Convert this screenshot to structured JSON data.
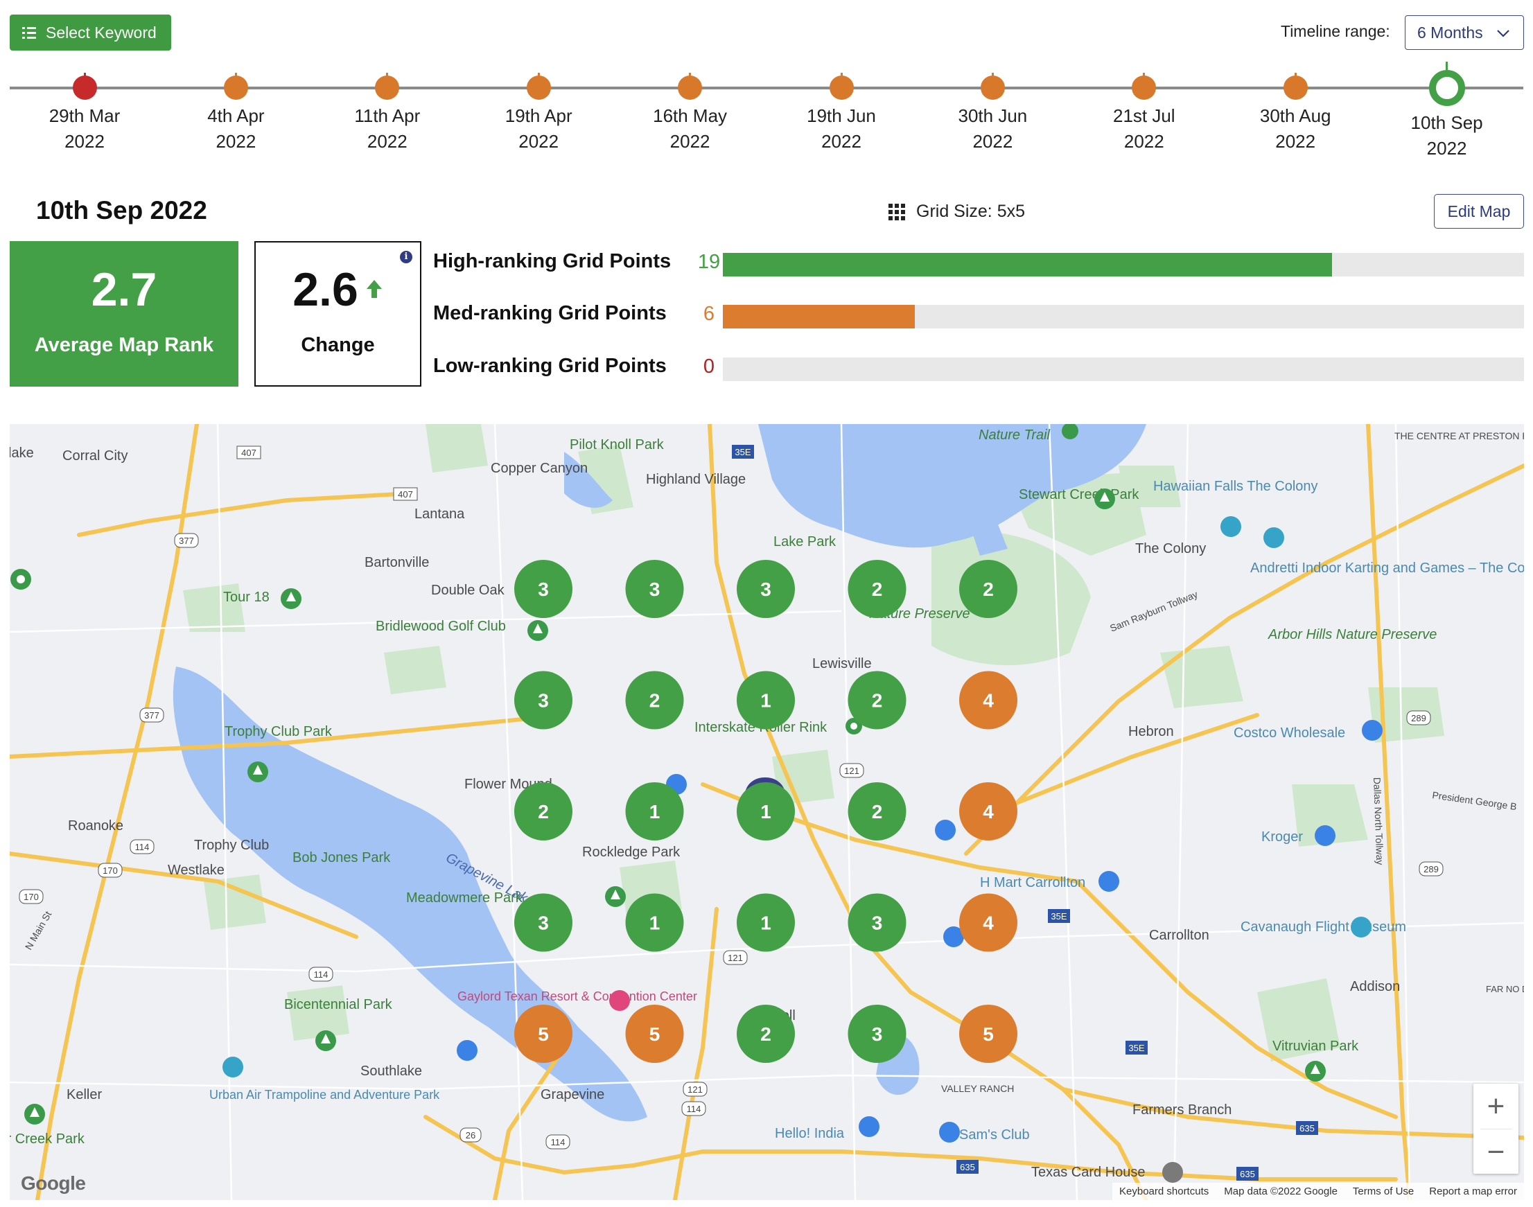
{
  "toolbar": {
    "select_keyword_label": "Select Keyword",
    "timeline_range_label": "Timeline range:",
    "timeline_range_value": "6 Months"
  },
  "timeline": [
    {
      "day": "29th Mar",
      "year": "2022",
      "status": "red"
    },
    {
      "day": "4th Apr",
      "year": "2022",
      "status": "orange"
    },
    {
      "day": "11th Apr",
      "year": "2022",
      "status": "orange"
    },
    {
      "day": "19th Apr",
      "year": "2022",
      "status": "orange"
    },
    {
      "day": "16th May",
      "year": "2022",
      "status": "orange"
    },
    {
      "day": "19th Jun",
      "year": "2022",
      "status": "orange"
    },
    {
      "day": "30th Jun",
      "year": "2022",
      "status": "orange"
    },
    {
      "day": "21st Jul",
      "year": "2022",
      "status": "orange"
    },
    {
      "day": "30th Aug",
      "year": "2022",
      "status": "orange"
    },
    {
      "day": "10th Sep",
      "year": "2022",
      "status": "current"
    }
  ],
  "header": {
    "date": "10th Sep 2022",
    "grid_size": "Grid Size: 5x5",
    "edit_map_label": "Edit Map"
  },
  "stats": {
    "average_rank": "2.7",
    "average_label": "Average Map Rank",
    "change": "2.6",
    "change_label": "Change",
    "info": "i"
  },
  "rank_bars": [
    {
      "label": "High-ranking Grid Points",
      "count": "19",
      "fraction": 0.76,
      "color": "#44a046"
    },
    {
      "label": "Med-ranking Grid Points",
      "count": "6",
      "fraction": 0.24,
      "color": "#dc7c2e"
    },
    {
      "label": "Low-ranking Grid Points",
      "count": "0",
      "fraction": 0,
      "color": "#b22222"
    }
  ],
  "colors": {
    "green": "#44a046",
    "orange": "#dc7c2e",
    "red": "#c62a2a",
    "navy": "#2c3a7d"
  },
  "map": {
    "grid": [
      [
        "3",
        "3",
        "3",
        "2",
        "2"
      ],
      [
        "3",
        "2",
        "1",
        "2",
        "4"
      ],
      [
        "2",
        "1",
        "1",
        "2",
        "4"
      ],
      [
        "3",
        "1",
        "1",
        "3",
        "4"
      ],
      [
        "5",
        "5",
        "2",
        "3",
        "5"
      ]
    ],
    "places": [
      "lake",
      "Corral City",
      "Copper Canyon",
      "Pilot Knoll Park",
      "Highland Village",
      "Nature Trail",
      "THE CENTRE AT PRESTON RIDGE",
      "Hawaiian Falls The Colony",
      "Stewart Creek Park",
      "The Colony",
      "Lantana",
      "Lake Park",
      "Bartonville",
      "Double Oak",
      "Tour 18",
      "Andretti Indoor Karting and Games – The Colony",
      "Bridlewood Golf Club",
      "Lewisville",
      "Nature Preserve",
      "Arbor Hills Nature Preserve",
      "Trophy Club Park",
      "Interskate Roller Rink",
      "Hebron",
      "Costco Wholesale",
      "Flower Mound",
      "Roanoke",
      "Trophy Club",
      "Bob Jones Park",
      "Westlake",
      "Grapevine Lake",
      "Rockledge Park",
      "Kroger",
      "H Mart Carrollton",
      "Meadowmere Park",
      "Carrollton",
      "Cavanaugh Flight Museum",
      "Gaylord Texan Resort & Convention Center",
      "Addison",
      "Bicentennial Park",
      "Vitruvian Park",
      "Southlake",
      "Urban Air Trampoline and Adventure Park",
      "Keller",
      "Grapevine",
      "VALLEY RANCH",
      "Farmers Branch",
      "Hello! India",
      "Sam's Club",
      "Bear Creek Park",
      "Texas Card House",
      "Coppell",
      "FAR NO DALL",
      "Sam Rayburn Tollway",
      "President George B",
      "Dallas North Tollway",
      "N Main St"
    ],
    "roads": [
      "407",
      "35E",
      "377",
      "121",
      "114",
      "170",
      "26",
      "289",
      "635"
    ],
    "attribution": [
      "Keyboard shortcuts",
      "Map data ©2022 Google",
      "Terms of Use",
      "Report a map error"
    ],
    "google": "Google",
    "zoom_in": "+",
    "zoom_out": "−"
  }
}
